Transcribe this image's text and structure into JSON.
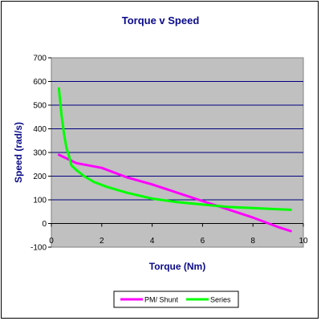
{
  "chart_data": {
    "type": "line",
    "title": "Torque v Speed",
    "xlabel": "Torque (Nm)",
    "ylabel": "Speed (rad/s)",
    "xlim": [
      0,
      10
    ],
    "ylim": [
      -100,
      700
    ],
    "xticks": [
      0,
      2,
      4,
      6,
      8,
      10
    ],
    "yticks": [
      -100,
      0,
      100,
      200,
      300,
      400,
      500,
      600,
      700
    ],
    "grid": "horizontal",
    "legend": "bottom",
    "plot_bg": "#c0c0c0",
    "grid_color": "#000080",
    "series": [
      {
        "name": "PM/ Shunt",
        "color": "#ff00ff",
        "x": [
          0.3,
          1,
          2,
          3,
          4,
          5,
          6,
          7,
          8,
          9,
          9.5
        ],
        "y": [
          290,
          255,
          235,
          195,
          165,
          130,
          95,
          60,
          25,
          -15,
          -32
        ]
      },
      {
        "name": "Series",
        "color": "#00ff00",
        "x": [
          0.3,
          0.4,
          0.5,
          0.6,
          0.7,
          0.8,
          1,
          1.3,
          1.7,
          2.2,
          3,
          4,
          5,
          6,
          7,
          8,
          9,
          9.5
        ],
        "y": [
          570,
          460,
          380,
          320,
          285,
          245,
          225,
          200,
          175,
          155,
          130,
          105,
          90,
          80,
          70,
          65,
          60,
          58
        ]
      }
    ]
  }
}
